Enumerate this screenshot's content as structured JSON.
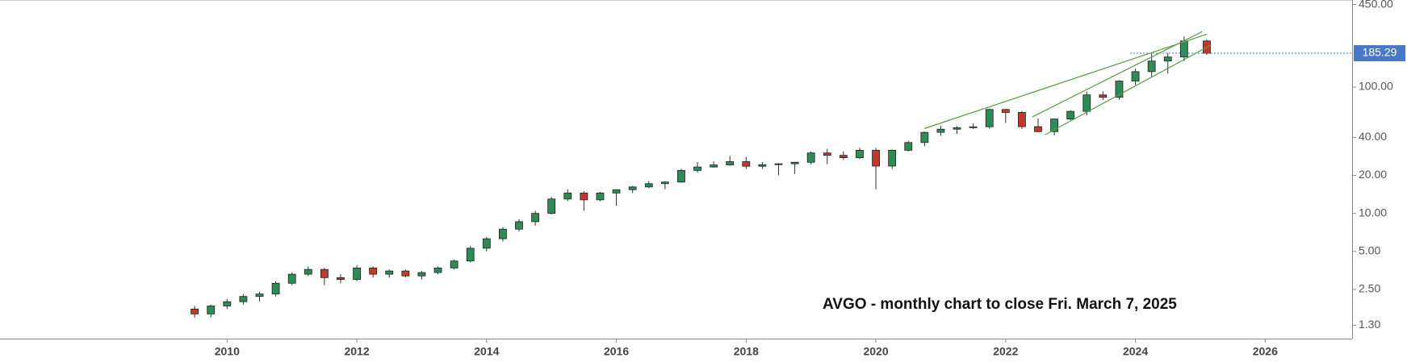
{
  "chart_data": {
    "type": "candlestick",
    "annotation": "AVGO - monthly chart to close Fri. March 7, 2025",
    "x": [
      2009.5,
      2009.75,
      2010,
      2010.25,
      2010.5,
      2010.75,
      2011,
      2011.25,
      2011.5,
      2011.75,
      2012,
      2012.25,
      2012.5,
      2012.75,
      2013,
      2013.25,
      2013.5,
      2013.75,
      2014,
      2014.25,
      2014.5,
      2014.75,
      2015,
      2015.25,
      2015.5,
      2015.75,
      2016,
      2016.25,
      2016.5,
      2016.75,
      2017,
      2017.25,
      2017.5,
      2017.75,
      2018,
      2018.25,
      2018.5,
      2018.75,
      2019,
      2019.25,
      2019.5,
      2019.75,
      2020,
      2020.25,
      2020.5,
      2020.75,
      2021,
      2021.25,
      2021.5,
      2021.75,
      2022,
      2022.25,
      2022.5,
      2022.75,
      2023,
      2023.25,
      2023.5,
      2023.75,
      2024,
      2024.25,
      2024.5,
      2024.75,
      2025.1
    ],
    "open": [
      1.75,
      1.6,
      1.85,
      2.0,
      2.2,
      2.3,
      2.8,
      3.3,
      3.6,
      3.1,
      3.0,
      3.7,
      3.3,
      3.5,
      3.2,
      3.4,
      3.7,
      4.2,
      5.3,
      6.3,
      7.5,
      8.6,
      10.0,
      13.0,
      14.5,
      12.8,
      14.5,
      15.4,
      16.2,
      17.2,
      17.7,
      21.9,
      23.3,
      24.2,
      25.7,
      23.6,
      24.3,
      24.7,
      25.4,
      30.1,
      28.8,
      27.6,
      31.6,
      23.7,
      31.6,
      36.4,
      43.8,
      46.4,
      47.7,
      48.5,
      66.5,
      63.0,
      48.6,
      44.4,
      55.9,
      64.2,
      86.7,
      83.1,
      111.6,
      132.5,
      160.6,
      173.0,
      231.8
    ],
    "high": [
      1.85,
      1.9,
      2.1,
      2.3,
      2.4,
      2.9,
      3.4,
      3.8,
      3.7,
      3.3,
      3.9,
      3.8,
      3.6,
      3.6,
      3.5,
      3.8,
      4.3,
      5.5,
      6.5,
      7.8,
      9.0,
      10.5,
      13.5,
      15.5,
      15.0,
      14.8,
      15.5,
      16.5,
      18.0,
      18.0,
      22.5,
      25.5,
      25.8,
      28.5,
      28.0,
      25.5,
      25.0,
      25.5,
      31.0,
      32.5,
      31.0,
      33.0,
      33.0,
      32.0,
      37.5,
      44.5,
      49.5,
      49.0,
      51.5,
      67.5,
      67.0,
      64.5,
      56.5,
      56.0,
      65.5,
      92.0,
      92.5,
      113.0,
      140.0,
      185.0,
      186.0,
      251.9,
      237.0
    ],
    "low": [
      1.5,
      1.5,
      1.75,
      1.9,
      2.0,
      2.2,
      2.7,
      3.2,
      2.7,
      2.8,
      2.9,
      3.1,
      3.1,
      3.1,
      3.0,
      3.3,
      3.6,
      4.1,
      5.0,
      6.0,
      7.2,
      8.0,
      9.8,
      12.5,
      10.5,
      12.5,
      11.5,
      14.5,
      15.8,
      15.5,
      17.5,
      21.0,
      23.0,
      23.8,
      22.5,
      22.5,
      20.0,
      20.5,
      24.5,
      24.5,
      26.5,
      26.8,
      15.5,
      22.5,
      31.0,
      34.0,
      41.0,
      42.5,
      46.5,
      47.0,
      52.0,
      46.5,
      44.0,
      41.5,
      54.5,
      60.0,
      79.0,
      79.5,
      104.0,
      120.0,
      128.0,
      160.0,
      180.0
    ],
    "close": [
      1.6,
      1.85,
      2.0,
      2.2,
      2.3,
      2.8,
      3.3,
      3.6,
      3.1,
      3.0,
      3.7,
      3.3,
      3.5,
      3.2,
      3.4,
      3.7,
      4.2,
      5.3,
      6.3,
      7.5,
      8.6,
      10.0,
      13.0,
      14.5,
      12.8,
      14.5,
      15.4,
      16.2,
      17.2,
      17.7,
      21.9,
      23.3,
      24.2,
      25.7,
      23.6,
      24.3,
      24.7,
      25.4,
      30.1,
      28.8,
      27.6,
      31.6,
      23.7,
      31.6,
      36.4,
      43.8,
      46.4,
      47.7,
      48.5,
      66.5,
      63.0,
      48.6,
      44.4,
      55.9,
      64.2,
      86.7,
      83.1,
      111.6,
      132.5,
      160.6,
      173.0,
      231.8,
      185.29
    ],
    "up_color": "#2e8b57",
    "down_color": "#c0392b",
    "current_price": 185.29,
    "current_price_color": "#4a78c8",
    "trendlines": [
      {
        "x": [
          2020.75,
          2025.1
        ],
        "y": [
          47,
          262
        ],
        "color": "#5a9a48"
      },
      {
        "x": [
          2022.41,
          2025.03
        ],
        "y": [
          58,
          275
        ],
        "color": "#5a9a48"
      },
      {
        "x": [
          2022.61,
          2025.17
        ],
        "y": [
          42,
          216
        ],
        "color": "#5a9a48"
      }
    ],
    "log_scale": true,
    "xlim": [
      2006.5,
      2027.34
    ],
    "xticks": [
      2010,
      2012,
      2014,
      2016,
      2018,
      2020,
      2022,
      2024,
      2026
    ],
    "ylim": [
      1.02,
      489
    ],
    "yticks": [
      {
        "value": 1.3,
        "label": "1.30"
      },
      {
        "value": 2.5,
        "label": "2.50"
      },
      {
        "value": 5,
        "label": "5.00"
      },
      {
        "value": 10,
        "label": "10.00"
      },
      {
        "value": 20,
        "label": "20.00"
      },
      {
        "value": 40,
        "label": "40.00"
      },
      {
        "value": 100,
        "label": "100.00"
      },
      {
        "value": 450,
        "label": "450.00"
      }
    ]
  }
}
